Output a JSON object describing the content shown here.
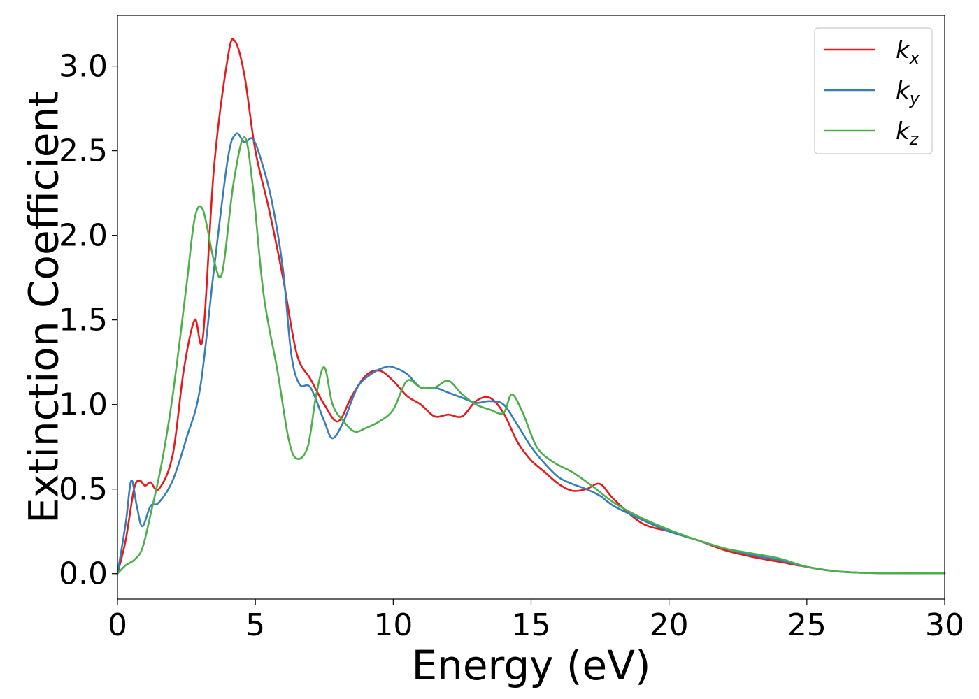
{
  "chart_data": {
    "type": "line",
    "title": "",
    "xlabel": "Energy (eV)",
    "ylabel": "Extinction Coefficient",
    "xlim": [
      0,
      30
    ],
    "ylim": [
      -0.15,
      3.3
    ],
    "xticks": [
      0,
      5,
      10,
      15,
      20,
      25,
      30
    ],
    "xtick_labels": [
      "0",
      "5",
      "10",
      "15",
      "20",
      "25",
      "30"
    ],
    "yticks": [
      0.0,
      0.5,
      1.0,
      1.5,
      2.0,
      2.5,
      3.0
    ],
    "ytick_labels": [
      "0.0",
      "0.5",
      "1.0",
      "1.5",
      "2.0",
      "2.5",
      "3.0"
    ],
    "grid": false,
    "legend_position": "top-right",
    "series": [
      {
        "name": "k_x",
        "legend_base": "k",
        "legend_sub": "x",
        "color": "#e41a1c",
        "x": [
          0,
          0.3,
          0.6,
          0.8,
          1.0,
          1.2,
          1.5,
          2.0,
          2.4,
          2.8,
          3.1,
          3.5,
          4.0,
          4.25,
          4.6,
          5.0,
          5.5,
          6.0,
          6.5,
          7.0,
          7.5,
          8.0,
          8.5,
          9.0,
          9.5,
          10.0,
          10.5,
          11.0,
          11.5,
          12.0,
          12.5,
          13.0,
          13.5,
          14.0,
          14.5,
          15.0,
          15.5,
          16.0,
          16.5,
          17.0,
          17.5,
          18.0,
          19.0,
          20.0,
          21.0,
          22.0,
          23.0,
          24.0,
          25.0,
          26.0,
          27.0,
          28.0,
          30.0
        ],
        "y": [
          0.0,
          0.2,
          0.5,
          0.55,
          0.52,
          0.54,
          0.5,
          0.7,
          1.2,
          1.5,
          1.4,
          2.4,
          3.05,
          3.15,
          2.95,
          2.5,
          2.15,
          1.75,
          1.3,
          1.15,
          1.0,
          0.9,
          1.05,
          1.17,
          1.2,
          1.14,
          1.05,
          1.0,
          0.93,
          0.94,
          0.93,
          1.02,
          1.04,
          0.95,
          0.78,
          0.67,
          0.6,
          0.53,
          0.49,
          0.5,
          0.53,
          0.44,
          0.3,
          0.25,
          0.2,
          0.14,
          0.1,
          0.07,
          0.04,
          0.015,
          0.005,
          0.003,
          0.002
        ]
      },
      {
        "name": "k_y",
        "legend_base": "k",
        "legend_sub": "y",
        "color": "#377eb8",
        "x": [
          0,
          0.3,
          0.5,
          0.7,
          0.9,
          1.2,
          1.5,
          2.0,
          2.5,
          3.0,
          3.5,
          4.0,
          4.3,
          4.6,
          4.9,
          5.2,
          5.6,
          6.0,
          6.3,
          6.6,
          7.0,
          7.5,
          7.8,
          8.2,
          8.7,
          9.2,
          9.7,
          10.0,
          10.5,
          11.0,
          11.5,
          12.0,
          12.5,
          13.0,
          13.5,
          14.0,
          14.5,
          15.0,
          15.5,
          16.0,
          16.5,
          17.0,
          17.5,
          18.0,
          19.0,
          20.0,
          21.0,
          22.0,
          23.0,
          24.0,
          25.0,
          26.0,
          27.0,
          28.0,
          30.0
        ],
        "y": [
          0.0,
          0.3,
          0.55,
          0.4,
          0.28,
          0.4,
          0.42,
          0.55,
          0.8,
          1.1,
          1.8,
          2.45,
          2.6,
          2.55,
          2.57,
          2.45,
          2.2,
          1.8,
          1.3,
          1.12,
          1.1,
          0.9,
          0.8,
          0.9,
          1.1,
          1.18,
          1.22,
          1.22,
          1.18,
          1.1,
          1.1,
          1.07,
          1.04,
          1.01,
          1.02,
          1.0,
          0.88,
          0.75,
          0.65,
          0.57,
          0.53,
          0.5,
          0.46,
          0.4,
          0.32,
          0.25,
          0.2,
          0.15,
          0.11,
          0.08,
          0.04,
          0.015,
          0.005,
          0.003,
          0.002
        ]
      },
      {
        "name": "k_z",
        "legend_base": "k",
        "legend_sub": "z",
        "color": "#4daf4a",
        "x": [
          0,
          0.3,
          0.6,
          0.9,
          1.2,
          1.6,
          2.0,
          2.5,
          2.8,
          3.1,
          3.5,
          3.8,
          4.2,
          4.6,
          4.9,
          5.3,
          5.8,
          6.2,
          6.5,
          6.9,
          7.2,
          7.5,
          7.8,
          8.2,
          8.6,
          9.0,
          9.5,
          10.0,
          10.5,
          11.0,
          11.5,
          12.0,
          12.5,
          13.0,
          13.5,
          14.0,
          14.3,
          14.7,
          15.2,
          15.8,
          16.5,
          17.2,
          18.0,
          19.0,
          20.0,
          21.0,
          22.0,
          23.0,
          24.0,
          25.0,
          26.0,
          27.0,
          28.0,
          30.0
        ],
        "y": [
          0.0,
          0.05,
          0.08,
          0.15,
          0.35,
          0.65,
          1.05,
          1.7,
          2.1,
          2.15,
          1.85,
          1.78,
          2.3,
          2.58,
          2.3,
          1.65,
          1.2,
          0.8,
          0.68,
          0.75,
          1.05,
          1.22,
          1.0,
          0.9,
          0.84,
          0.86,
          0.9,
          0.97,
          1.14,
          1.1,
          1.1,
          1.14,
          1.06,
          1.0,
          0.97,
          0.95,
          1.06,
          0.95,
          0.75,
          0.66,
          0.6,
          0.52,
          0.42,
          0.33,
          0.26,
          0.2,
          0.15,
          0.12,
          0.09,
          0.04,
          0.015,
          0.005,
          0.003,
          0.002
        ]
      }
    ]
  }
}
